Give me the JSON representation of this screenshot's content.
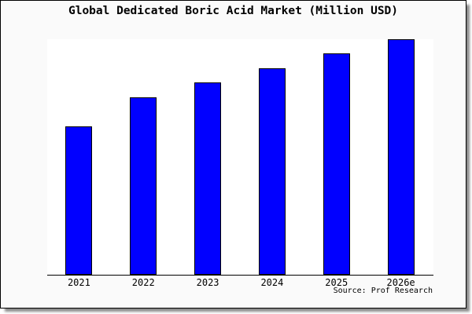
{
  "window": {
    "canvas_background": "#ffffff",
    "card_background": "#fafafa",
    "card_border_color": "#000000",
    "card_shadow_color": "#8a8a8a"
  },
  "chart_data": {
    "type": "bar",
    "title": "Global Dedicated Boric Acid Market (Million USD)",
    "categories": [
      "2021",
      "2022",
      "2023",
      "2024",
      "2025",
      "2026e"
    ],
    "values_percent_of_max": [
      62.7,
      75.1,
      81.6,
      87.5,
      93.8,
      100
    ],
    "value_axis_note": "y-axis has no ticks, labels or gridlines; values estimated as percent of tallest bar (2026e = 100)",
    "xlabel": "",
    "ylabel": "",
    "legend": "none",
    "grid": "off",
    "plot_background": "#ffffff",
    "axis_line_color": "#000000",
    "bar_color": "#0100ff",
    "bar_border_color": "#000000",
    "source_note": "Source: Prof Research"
  }
}
